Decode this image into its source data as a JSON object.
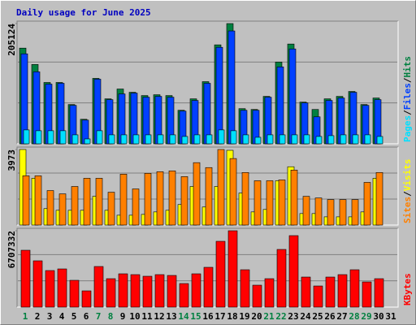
{
  "title": "Daily usage for June 2025",
  "legend_separator": "/",
  "categories": [
    "1",
    "2",
    "3",
    "4",
    "5",
    "6",
    "7",
    "8",
    "9",
    "10",
    "11",
    "12",
    "13",
    "14",
    "15",
    "16",
    "17",
    "18",
    "19",
    "20",
    "21",
    "22",
    "23",
    "24",
    "25",
    "26",
    "27",
    "28",
    "29",
    "30",
    "31"
  ],
  "category_colors": [
    "#008040",
    "#000000",
    "#000000",
    "#000000",
    "#000000",
    "#000000",
    "#008040",
    "#008040",
    "#000000",
    "#000000",
    "#000000",
    "#000000",
    "#000000",
    "#008040",
    "#008040",
    "#000000",
    "#000000",
    "#000000",
    "#000000",
    "#000000",
    "#008040",
    "#008040",
    "#000000",
    "#000000",
    "#000000",
    "#000000",
    "#000000",
    "#008040",
    "#008040",
    "#000000",
    "#000000"
  ],
  "chart_data": [
    {
      "type": "bar",
      "ylim": [
        0,
        205124
      ],
      "yticks": [
        205124
      ],
      "series": [
        {
          "name": "Pages",
          "color": "#00E0FF",
          "values": [
            23722,
            22326,
            22326,
            22326,
            15349,
            8372,
            22326,
            15349,
            15349,
            15349,
            15349,
            15349,
            15349,
            12559,
            15349,
            15349,
            23722,
            22326,
            15349,
            11163,
            15349,
            15349,
            15349,
            15349,
            12559,
            13954,
            15349,
            15349,
            15349,
            12559,
            null
          ]
        },
        {
          "name": "Files",
          "color": "#0040FF",
          "values": [
            153494,
            122795,
            101864,
            103260,
            65584,
            40467,
            110237,
            75352,
            85119,
            86515,
            79538,
            80933,
            79538,
            55816,
            73956,
            103260,
            164657,
            192565,
            57211,
            57211,
            79538,
            131168,
            161866,
            69770,
            46048,
            73956,
            78142,
            87910,
            65584,
            75352,
            null
          ]
        },
        {
          "name": "Hits",
          "color": "#008040",
          "values": [
            163262,
            135354,
            104655,
            104655,
            66979,
            41862,
            111632,
            76747,
            93492,
            87910,
            82329,
            83724,
            82329,
            57211,
            76747,
            106050,
            168843,
            205124,
            60002,
            58607,
            80933,
            139540,
            170239,
            71165,
            58607,
            76747,
            80933,
            89306,
            66979,
            78142,
            null
          ]
        }
      ]
    },
    {
      "type": "bar",
      "ylim": [
        0,
        3973
      ],
      "yticks": [
        3973
      ],
      "series": [
        {
          "name": "Sites",
          "color": "#FF8000",
          "values": [
            2591,
            2591,
            1814,
            1641,
            2029,
            2461,
            2461,
            1727,
            2677,
            1900,
            2720,
            2807,
            2850,
            2548,
            3282,
            3023,
            3973,
            3498,
            2764,
            2332,
            2332,
            2375,
            2893,
            1511,
            1425,
            1339,
            1339,
            1339,
            2245,
            2764,
            null
          ]
        },
        {
          "name": "Visits",
          "color": "#FFFF00",
          "values": [
            3973,
            2461,
            864,
            777,
            777,
            777,
            1511,
            777,
            518,
            518,
            561,
            691,
            777,
            1080,
            2030,
            950,
            2030,
            3930,
            1684,
            691,
            820,
            2332,
            3066,
            605,
            605,
            432,
            432,
            432,
            691,
            2461,
            null
          ]
        }
      ]
    },
    {
      "type": "bar",
      "ylim": [
        0,
        6707332
      ],
      "yticks": [
        6707332
      ],
      "series": [
        {
          "name": "KBytes",
          "color": "#FF0000",
          "values": [
            4994774,
            4067178,
            3210930,
            3353638,
            2354682,
            1427080,
            3567700,
            2497390,
            2925514,
            2854160,
            2711452,
            2854160,
            2782806,
            2069266,
            2925514,
            3496346,
            5779674,
            6707332,
            3282284,
            1926558,
            2497390,
            5066134,
            6279152,
            2640098,
            1855204,
            2640098,
            2854160,
            3282284,
            2211974,
            2497390,
            null
          ]
        }
      ]
    }
  ]
}
